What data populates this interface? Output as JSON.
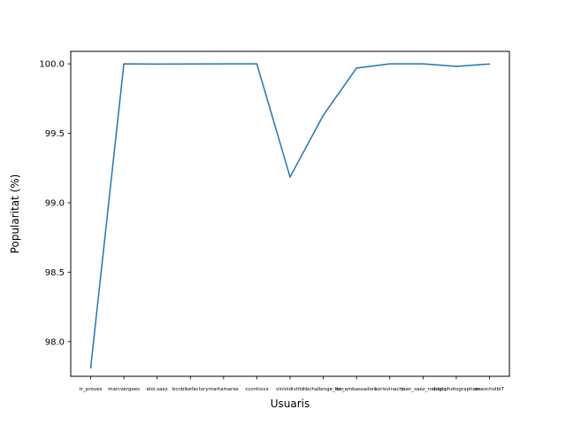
{
  "chart_data": {
    "type": "line",
    "categories": [
      "tr_proves",
      "marcvergees",
      "eloi.saez",
      "bcnbikefactory",
      "martamarse",
      "ccontixxx",
      "vinividivitto",
      "hbchallenge_bcn",
      "bc_ambassadors",
      "borisvinacho",
      "joan_saez_rodrigo",
      "duul.photographers",
      "anescholbi7"
    ],
    "values": [
      97.81,
      100.0,
      99.998,
      99.999,
      100.0,
      100.0,
      99.185,
      99.63,
      99.97,
      100.0,
      100.0,
      99.982,
      99.999
    ],
    "xlabel": "Usuaris",
    "ylabel": "Popularitat (%)",
    "ylim": [
      97.75,
      100.09
    ],
    "yticks": [
      "98.0",
      "98.5",
      "99.0",
      "99.5",
      "100.0"
    ],
    "grid": false,
    "color": "#1f77b4"
  }
}
